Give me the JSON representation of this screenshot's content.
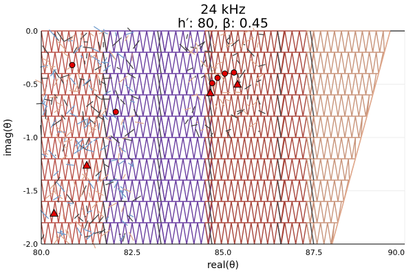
{
  "chart_data": {
    "type": "scatter",
    "title": "24 kHz",
    "subtitle": "h′: 80, β: 0.45",
    "xlabel": "real(θ)",
    "ylabel": "imag(θ)",
    "xlim": [
      80.0,
      90.0
    ],
    "ylim": [
      -2.0,
      0.0
    ],
    "xticks": [
      "80.0",
      "82.5",
      "85.0",
      "87.5",
      "90.0"
    ],
    "yticks": [
      "0.0",
      "-0.5",
      "-1.0",
      "-1.5",
      "-2.0"
    ],
    "xtick_values": [
      80.0,
      82.5,
      85.0,
      87.5,
      90.0
    ],
    "ytick_values": [
      0.0,
      -0.5,
      -1.0,
      -1.5,
      -2.0
    ],
    "grid": true,
    "mesh_bands": [
      {
        "x0": 80.0,
        "x1": 81.7,
        "color": "#b9524a"
      },
      {
        "x0": 81.7,
        "x1": 83.3,
        "color": "#6a3fa0"
      },
      {
        "x0": 83.3,
        "x1": 84.5,
        "color": "#6a3fa0"
      },
      {
        "x0": 84.5,
        "x1": 86.5,
        "color": "#a8453b"
      },
      {
        "x0": 86.5,
        "x1": 87.3,
        "color": "#a8453b"
      },
      {
        "x0": 87.3,
        "x1": 89.6,
        "color": "#c8947a"
      }
    ],
    "roots_circle": [
      {
        "x": 80.85,
        "y": -0.32
      },
      {
        "x": 82.05,
        "y": -0.76
      },
      {
        "x": 84.85,
        "y": -0.44
      },
      {
        "x": 85.05,
        "y": -0.4
      },
      {
        "x": 85.3,
        "y": -0.39
      },
      {
        "x": 84.7,
        "y": -0.49
      }
    ],
    "roots_triangle": [
      {
        "x": 84.65,
        "y": -0.58
      },
      {
        "x": 85.4,
        "y": -0.5
      },
      {
        "x": 81.25,
        "y": -1.26
      },
      {
        "x": 80.35,
        "y": -1.71
      }
    ],
    "marker_color": "#e00000"
  }
}
